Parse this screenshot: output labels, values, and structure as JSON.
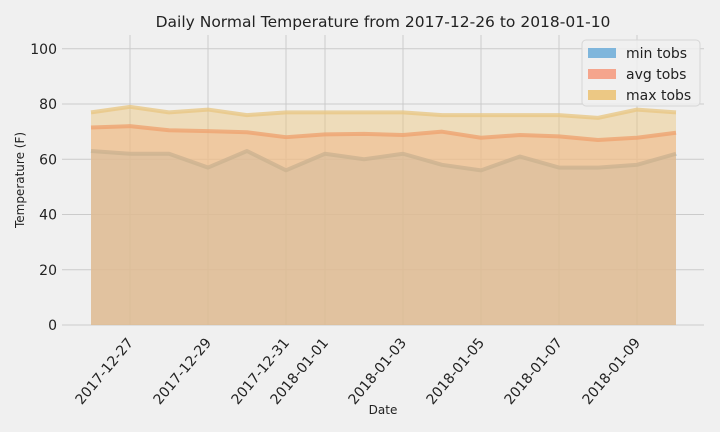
{
  "chart_data": {
    "type": "area",
    "title": "Daily Normal Temperature from 2017-12-26 to 2018-01-10",
    "xlabel": "Date",
    "ylabel": "Temperature (F)",
    "ylim": [
      0,
      105
    ],
    "yticks": [
      0,
      20,
      40,
      60,
      80,
      100
    ],
    "x": [
      "2017-12-26",
      "2017-12-27",
      "2017-12-28",
      "2017-12-29",
      "2017-12-30",
      "2017-12-31",
      "2018-01-01",
      "2018-01-02",
      "2018-01-03",
      "2018-01-04",
      "2018-01-05",
      "2018-01-06",
      "2018-01-07",
      "2018-01-08",
      "2018-01-09",
      "2018-01-10"
    ],
    "xtick_labels": [
      "2017-12-27",
      "2017-12-29",
      "2017-12-31",
      "2018-01-01",
      "2018-01-03",
      "2018-01-05",
      "2018-01-07",
      "2018-01-09"
    ],
    "grid": true,
    "legend_position": "top-right",
    "stacked": false,
    "series": [
      {
        "name": "min tobs",
        "color": "#7fb6dc",
        "line_color": "#5e92aa",
        "values": [
          63,
          62,
          62,
          57,
          63,
          56,
          62,
          60,
          62,
          58,
          56,
          61,
          57,
          57,
          58,
          62
        ]
      },
      {
        "name": "avg tobs",
        "color": "#f5a58d",
        "line_color": "#f27a55",
        "values": [
          71.5,
          72,
          70.5,
          70.2,
          69.8,
          68,
          69,
          69.2,
          68.8,
          70,
          67.8,
          68.8,
          68.3,
          67,
          67.8,
          69.6
        ]
      },
      {
        "name": "max tobs",
        "color": "#ecc884",
        "line_color": "#e8c680",
        "values": [
          77,
          79,
          77,
          78,
          76,
          77,
          77,
          77,
          77,
          76,
          76,
          76,
          76,
          75,
          78,
          77
        ]
      }
    ]
  }
}
